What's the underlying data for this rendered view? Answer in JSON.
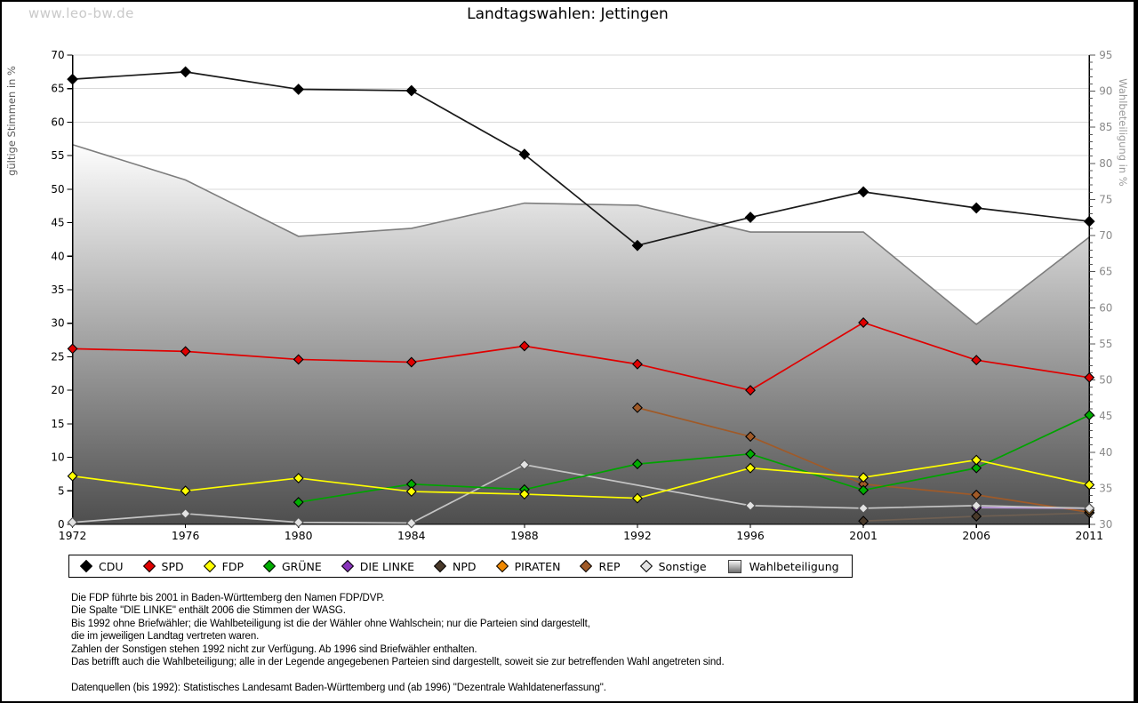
{
  "watermark": "www.leo-bw.de",
  "title": "Landtagswahlen: Jettingen",
  "left_axis": {
    "label": "gültige Stimmen in %",
    "min": 0,
    "max": 70,
    "step": 5
  },
  "right_axis": {
    "label": "Wahlbeteiligung in %",
    "min": 30,
    "max": 95,
    "step": 5
  },
  "chart_data": {
    "type": "line",
    "title": "Landtagswahlen: Jettingen",
    "categories": [
      "1972",
      "1976",
      "1980",
      "1984",
      "1988",
      "1992",
      "1996",
      "2001",
      "2006",
      "2011"
    ],
    "xlabel": "",
    "ylabel_left": "gültige Stimmen in %",
    "ylabel_right": "Wahlbeteiligung in %",
    "ylim_left": [
      0,
      70
    ],
    "ylim_right": [
      30,
      95
    ],
    "grid": "horizontal",
    "legend_position": "bottom",
    "series": [
      {
        "name": "Wahlbeteiligung",
        "type": "area",
        "axis": "right",
        "line_color": "#7d7d7d",
        "fill_top": "#fdfdfd",
        "fill_bottom": "#4e4e4e",
        "values": [
          82.6,
          77.7,
          69.9,
          71.0,
          74.5,
          74.2,
          70.5,
          70.5,
          57.7,
          69.8
        ]
      },
      {
        "name": "REP",
        "type": "line",
        "axis": "left",
        "line_color": "#a05a28",
        "marker_color": "#a05a28",
        "values": [
          null,
          null,
          null,
          null,
          null,
          17.4,
          13.1,
          6.0,
          4.4,
          1.8
        ]
      },
      {
        "name": "NPD",
        "type": "line",
        "axis": "left",
        "line_color": "#6e5f52",
        "marker_color": "#4a3a2a",
        "values": [
          null,
          null,
          null,
          null,
          null,
          null,
          null,
          0.5,
          1.2,
          1.7
        ]
      },
      {
        "name": "PIRATEN",
        "type": "line",
        "axis": "left",
        "line_color": "#ef8800",
        "marker_color": "#ef8800",
        "values": [
          null,
          null,
          null,
          null,
          null,
          null,
          null,
          null,
          null,
          2.1
        ]
      },
      {
        "name": "DIE LINKE",
        "type": "line",
        "axis": "left",
        "line_color": "#c09ae0",
        "marker_color": "#8833bb",
        "values": [
          null,
          null,
          null,
          null,
          null,
          null,
          null,
          null,
          2.5,
          2.4
        ]
      },
      {
        "name": "Sonstige",
        "type": "line",
        "axis": "left",
        "line_color": "#c4c4c4",
        "marker_color": "#e3e3e3",
        "values": [
          0.3,
          1.6,
          0.3,
          0.2,
          8.9,
          null,
          2.8,
          2.4,
          2.8,
          2.4
        ]
      },
      {
        "name": "GRÜNE",
        "type": "line",
        "axis": "left",
        "line_color": "#00a300",
        "marker_color": "#00ad00",
        "values": [
          null,
          null,
          3.3,
          6.0,
          5.2,
          9.0,
          10.5,
          5.1,
          8.4,
          16.3
        ]
      },
      {
        "name": "FDP",
        "type": "line",
        "axis": "left",
        "line_color": "#ffff00",
        "marker_color": "#ffff00",
        "values": [
          7.2,
          5.0,
          6.9,
          4.9,
          4.5,
          3.9,
          8.4,
          7.0,
          9.6,
          5.9
        ]
      },
      {
        "name": "SPD",
        "type": "line",
        "axis": "left",
        "line_color": "#e00000",
        "marker_color": "#e00000",
        "values": [
          26.2,
          25.8,
          24.6,
          24.2,
          26.6,
          23.9,
          20.0,
          30.1,
          24.5,
          21.9
        ]
      },
      {
        "name": "CDU",
        "type": "line",
        "axis": "left",
        "line_color": "#1a1a1a",
        "marker_color": "#000000",
        "values": [
          66.4,
          67.5,
          64.9,
          64.7,
          55.2,
          41.6,
          45.8,
          49.6,
          47.2,
          45.2
        ]
      }
    ]
  },
  "legend": {
    "items": [
      {
        "label": "CDU",
        "color": "#000000",
        "shape": "diamond"
      },
      {
        "label": "SPD",
        "color": "#e00000",
        "shape": "diamond"
      },
      {
        "label": "FDP",
        "color": "#ffff00",
        "shape": "diamond"
      },
      {
        "label": "GRÜNE",
        "color": "#00ad00",
        "shape": "diamond"
      },
      {
        "label": "DIE LINKE",
        "color": "#8833bb",
        "shape": "diamond"
      },
      {
        "label": "NPD",
        "color": "#4a3a2a",
        "shape": "diamond"
      },
      {
        "label": "PIRATEN",
        "color": "#ef8800",
        "shape": "diamond"
      },
      {
        "label": "REP",
        "color": "#a05a28",
        "shape": "diamond"
      },
      {
        "label": "Sonstige",
        "color": "#e3e3e3",
        "shape": "diamond"
      },
      {
        "label": "Wahlbeteiligung",
        "color": "gradient-gray",
        "shape": "square"
      }
    ]
  },
  "footnotes": [
    "Die FDP führte bis 2001 in Baden-Württemberg den Namen FDP/DVP.",
    "Die Spalte \"DIE LINKE\" enthält 2006 die Stimmen der WASG.",
    "Bis 1992 ohne Briefwähler; die Wahlbeteiligung ist die der Wähler ohne Wahlschein; nur die Parteien sind dargestellt,",
    "die im jeweiligen Landtag vertreten waren.",
    "Zahlen der Sonstigen stehen 1992 nicht zur Verfügung. Ab 1996 sind Briefwähler enthalten.",
    "Das betrifft auch die Wahlbeteiligung; alle in der Legende angegebenen Parteien sind dargestellt, soweit sie zur betreffenden Wahl angetreten sind.",
    "",
    "Datenquellen (bis 1992): Statistisches Landesamt Baden-Württemberg und (ab 1996) \"Dezentrale Wahldatenerfassung\"."
  ]
}
